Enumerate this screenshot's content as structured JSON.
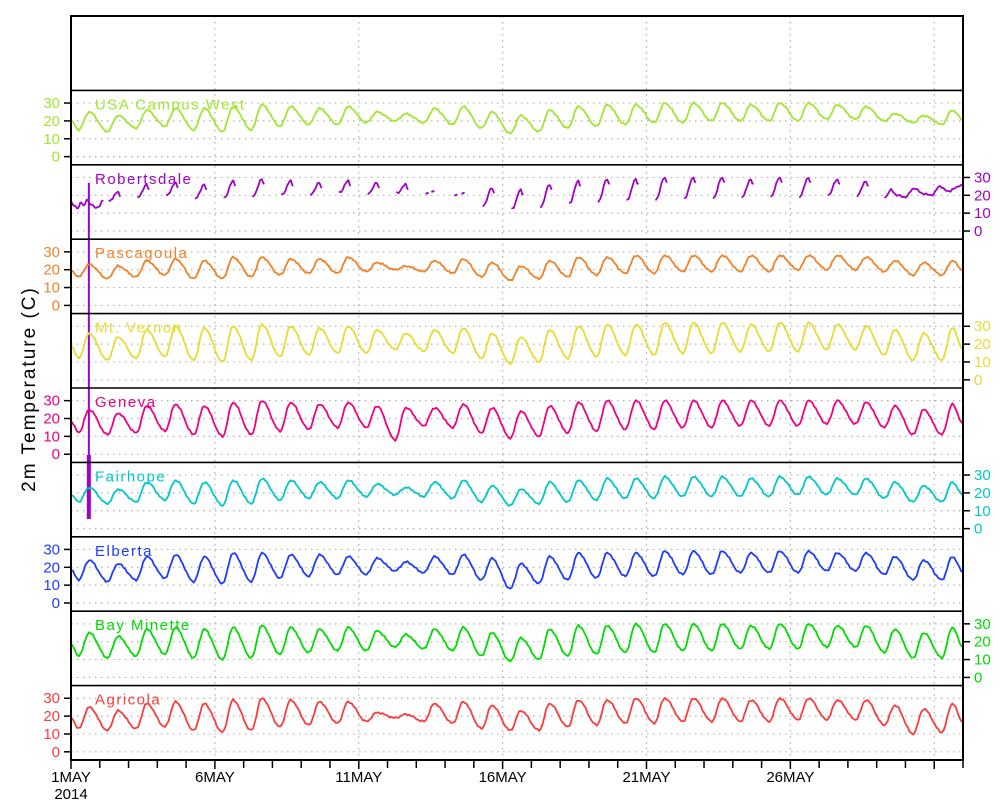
{
  "figure": {
    "background": "#ffffff",
    "frame_color": "#000000",
    "ylabel": "2m Temperature (C)"
  },
  "chart_data": {
    "type": "line",
    "title": "",
    "ylabel": "2m Temperature (C)",
    "x_axis": {
      "month": "MAY",
      "year": "2014",
      "days_total": 31,
      "tick_labels": [
        "1MAY",
        "6MAY",
        "11MAY",
        "16MAY",
        "21MAY",
        "26MAY"
      ],
      "tick_days": [
        1,
        6,
        11,
        16,
        21,
        26
      ],
      "first_label_sub": "2014"
    },
    "y_axis": {
      "ticks": [
        0,
        10,
        20,
        30
      ],
      "panel_value_range": [
        -4.6,
        36.8
      ],
      "label_sides_alternate": true
    },
    "grid": {
      "style": "dotted",
      "color": "#b0b0b0",
      "vertical_every_days": 5
    },
    "panels": [
      {
        "name": "USA Campus West",
        "color": "#a0e632",
        "axis_side": "left",
        "daily_min_max": [
          [
            15,
            25
          ],
          [
            14,
            23
          ],
          [
            16,
            26
          ],
          [
            17,
            27
          ],
          [
            15,
            27
          ],
          [
            14,
            28
          ],
          [
            15,
            29
          ],
          [
            17,
            28
          ],
          [
            18,
            27
          ],
          [
            18,
            28
          ],
          [
            19,
            25
          ],
          [
            20,
            24
          ],
          [
            19,
            27
          ],
          [
            18,
            28
          ],
          [
            16,
            25
          ],
          [
            13,
            23
          ],
          [
            14,
            26
          ],
          [
            16,
            28
          ],
          [
            17,
            29
          ],
          [
            18,
            29
          ],
          [
            19,
            30
          ],
          [
            19,
            30
          ],
          [
            20,
            30
          ],
          [
            20,
            29
          ],
          [
            20,
            30
          ],
          [
            20,
            30
          ],
          [
            21,
            29
          ],
          [
            21,
            28
          ],
          [
            20,
            24
          ],
          [
            19,
            23
          ],
          [
            18,
            26
          ]
        ]
      },
      {
        "name": "Robertsdale",
        "color": "#a000c8",
        "axis_side": "right",
        "display": "daytime-arcs-with-gaps",
        "daily_min_max": [
          [
            13,
            20
          ],
          [
            13,
            22
          ],
          [
            14,
            26
          ],
          [
            15,
            27
          ],
          [
            13,
            26
          ],
          [
            12,
            28
          ],
          [
            13,
            29
          ],
          [
            15,
            28
          ],
          [
            16,
            27
          ],
          [
            17,
            28
          ],
          [
            17,
            27
          ],
          [
            18,
            26
          ],
          [
            17,
            24
          ],
          [
            16,
            23
          ],
          [
            13,
            24
          ],
          [
            11,
            23
          ],
          [
            12,
            26
          ],
          [
            14,
            28
          ],
          [
            15,
            29
          ],
          [
            16,
            29
          ],
          [
            16,
            30
          ],
          [
            17,
            30
          ],
          [
            17,
            30
          ],
          [
            18,
            29
          ],
          [
            18,
            30
          ],
          [
            18,
            30
          ],
          [
            19,
            29
          ],
          [
            19,
            28
          ],
          [
            18,
            26
          ],
          [
            18,
            26
          ],
          [
            19,
            27
          ]
        ],
        "artifact": {
          "description": "vertical off-scale spike line",
          "day": 0.62,
          "color": "#a000c8"
        }
      },
      {
        "name": "Pascagoula",
        "color": "#f08228",
        "axis_side": "left",
        "daily_min_max": [
          [
            16,
            23
          ],
          [
            15,
            22
          ],
          [
            16,
            25
          ],
          [
            17,
            26
          ],
          [
            15,
            25
          ],
          [
            15,
            27
          ],
          [
            16,
            27
          ],
          [
            17,
            26
          ],
          [
            18,
            26
          ],
          [
            18,
            27
          ],
          [
            19,
            24
          ],
          [
            20,
            22
          ],
          [
            19,
            25
          ],
          [
            18,
            26
          ],
          [
            16,
            24
          ],
          [
            14,
            22
          ],
          [
            15,
            25
          ],
          [
            16,
            27
          ],
          [
            17,
            27
          ],
          [
            18,
            28
          ],
          [
            18,
            28
          ],
          [
            19,
            28
          ],
          [
            19,
            28
          ],
          [
            19,
            28
          ],
          [
            19,
            28
          ],
          [
            20,
            28
          ],
          [
            20,
            28
          ],
          [
            20,
            27
          ],
          [
            19,
            25
          ],
          [
            17,
            24
          ],
          [
            17,
            25
          ]
        ]
      },
      {
        "name": "Mt. Vernon",
        "color": "#e6dc32",
        "axis_side": "right",
        "daily_min_max": [
          [
            12,
            26
          ],
          [
            11,
            24
          ],
          [
            12,
            28
          ],
          [
            13,
            30
          ],
          [
            11,
            29
          ],
          [
            10,
            30
          ],
          [
            11,
            31
          ],
          [
            13,
            30
          ],
          [
            14,
            29
          ],
          [
            15,
            30
          ],
          [
            15,
            28
          ],
          [
            17,
            26
          ],
          [
            16,
            28
          ],
          [
            15,
            29
          ],
          [
            12,
            26
          ],
          [
            9,
            24
          ],
          [
            10,
            28
          ],
          [
            12,
            30
          ],
          [
            13,
            31
          ],
          [
            14,
            31
          ],
          [
            14,
            32
          ],
          [
            15,
            32
          ],
          [
            15,
            32
          ],
          [
            16,
            31
          ],
          [
            16,
            32
          ],
          [
            16,
            32
          ],
          [
            17,
            31
          ],
          [
            17,
            30
          ],
          [
            14,
            28
          ],
          [
            11,
            26
          ],
          [
            11,
            29
          ]
        ]
      },
      {
        "name": "Geneva",
        "color": "#f00082",
        "axis_side": "left",
        "daily_min_max": [
          [
            12,
            25
          ],
          [
            11,
            23
          ],
          [
            12,
            27
          ],
          [
            13,
            28
          ],
          [
            11,
            27
          ],
          [
            10,
            29
          ],
          [
            11,
            30
          ],
          [
            13,
            29
          ],
          [
            14,
            28
          ],
          [
            15,
            29
          ],
          [
            15,
            27
          ],
          [
            8,
            26
          ],
          [
            16,
            26
          ],
          [
            15,
            28
          ],
          [
            12,
            26
          ],
          [
            9,
            24
          ],
          [
            10,
            27
          ],
          [
            12,
            29
          ],
          [
            13,
            30
          ],
          [
            14,
            30
          ],
          [
            14,
            30
          ],
          [
            15,
            30
          ],
          [
            15,
            30
          ],
          [
            16,
            30
          ],
          [
            16,
            30
          ],
          [
            16,
            30
          ],
          [
            17,
            30
          ],
          [
            17,
            29
          ],
          [
            15,
            27
          ],
          [
            11,
            25
          ],
          [
            11,
            28
          ]
        ]
      },
      {
        "name": "Fairhope",
        "color": "#00c8c8",
        "axis_side": "right",
        "daily_min_max": [
          [
            15,
            23
          ],
          [
            14,
            22
          ],
          [
            15,
            26
          ],
          [
            16,
            27
          ],
          [
            14,
            26
          ],
          [
            13,
            27
          ],
          [
            14,
            28
          ],
          [
            16,
            27
          ],
          [
            17,
            26
          ],
          [
            17,
            27
          ],
          [
            18,
            25
          ],
          [
            19,
            23
          ],
          [
            18,
            26
          ],
          [
            17,
            27
          ],
          [
            15,
            24
          ],
          [
            13,
            22
          ],
          [
            14,
            26
          ],
          [
            15,
            27
          ],
          [
            16,
            28
          ],
          [
            17,
            28
          ],
          [
            17,
            29
          ],
          [
            18,
            29
          ],
          [
            18,
            29
          ],
          [
            18,
            28
          ],
          [
            18,
            29
          ],
          [
            19,
            29
          ],
          [
            19,
            28
          ],
          [
            19,
            28
          ],
          [
            17,
            26
          ],
          [
            15,
            24
          ],
          [
            15,
            26
          ]
        ]
      },
      {
        "name": "Elberta",
        "color": "#1e3cff",
        "axis_side": "left",
        "daily_min_max": [
          [
            13,
            24
          ],
          [
            12,
            22
          ],
          [
            13,
            26
          ],
          [
            14,
            27
          ],
          [
            12,
            26
          ],
          [
            11,
            28
          ],
          [
            12,
            28
          ],
          [
            14,
            27
          ],
          [
            15,
            27
          ],
          [
            16,
            26
          ],
          [
            16,
            25
          ],
          [
            18,
            23
          ],
          [
            17,
            26
          ],
          [
            16,
            27
          ],
          [
            13,
            25
          ],
          [
            8,
            22
          ],
          [
            11,
            26
          ],
          [
            13,
            28
          ],
          [
            14,
            28
          ],
          [
            15,
            28
          ],
          [
            15,
            29
          ],
          [
            16,
            29
          ],
          [
            16,
            29
          ],
          [
            17,
            28
          ],
          [
            17,
            29
          ],
          [
            17,
            29
          ],
          [
            18,
            28
          ],
          [
            18,
            28
          ],
          [
            16,
            26
          ],
          [
            13,
            24
          ],
          [
            13,
            26
          ]
        ]
      },
      {
        "name": "Bay Minette",
        "color": "#00dc00",
        "axis_side": "right",
        "daily_min_max": [
          [
            12,
            25
          ],
          [
            11,
            23
          ],
          [
            12,
            27
          ],
          [
            13,
            28
          ],
          [
            11,
            27
          ],
          [
            10,
            28
          ],
          [
            11,
            29
          ],
          [
            13,
            28
          ],
          [
            14,
            27
          ],
          [
            15,
            28
          ],
          [
            15,
            26
          ],
          [
            17,
            24
          ],
          [
            16,
            27
          ],
          [
            15,
            28
          ],
          [
            12,
            25
          ],
          [
            9,
            22
          ],
          [
            10,
            27
          ],
          [
            12,
            29
          ],
          [
            13,
            29
          ],
          [
            14,
            30
          ],
          [
            14,
            30
          ],
          [
            15,
            30
          ],
          [
            15,
            30
          ],
          [
            16,
            29
          ],
          [
            16,
            30
          ],
          [
            16,
            30
          ],
          [
            17,
            29
          ],
          [
            17,
            29
          ],
          [
            14,
            27
          ],
          [
            11,
            25
          ],
          [
            11,
            28
          ]
        ]
      },
      {
        "name": "Agricola",
        "color": "#fa3c3c",
        "axis_side": "left",
        "daily_min_max": [
          [
            13,
            25
          ],
          [
            12,
            23
          ],
          [
            13,
            27
          ],
          [
            14,
            28
          ],
          [
            12,
            27
          ],
          [
            11,
            29
          ],
          [
            12,
            30
          ],
          [
            14,
            29
          ],
          [
            15,
            28
          ],
          [
            16,
            28
          ],
          [
            17,
            22
          ],
          [
            19,
            21
          ],
          [
            17,
            27
          ],
          [
            16,
            28
          ],
          [
            13,
            26
          ],
          [
            12,
            23
          ],
          [
            12,
            27
          ],
          [
            14,
            29
          ],
          [
            15,
            29
          ],
          [
            16,
            30
          ],
          [
            16,
            30
          ],
          [
            17,
            30
          ],
          [
            17,
            30
          ],
          [
            17,
            29
          ],
          [
            17,
            30
          ],
          [
            18,
            30
          ],
          [
            18,
            29
          ],
          [
            18,
            29
          ],
          [
            15,
            26
          ],
          [
            10,
            24
          ],
          [
            11,
            27
          ]
        ]
      }
    ]
  }
}
